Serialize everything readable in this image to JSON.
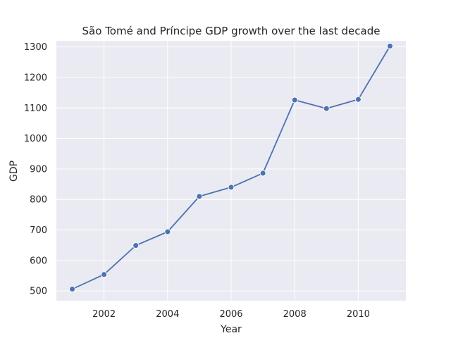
{
  "chart_data": {
    "type": "line",
    "title": "São Tomé and Príncipe GDP growth over the last decade",
    "xlabel": "Year",
    "ylabel": "GDP",
    "xlim": [
      2000.5,
      2011.5
    ],
    "ylim": [
      468,
      1320
    ],
    "xticks": [
      2002,
      2004,
      2006,
      2008,
      2010
    ],
    "yticks": [
      500,
      600,
      700,
      800,
      900,
      1000,
      1100,
      1200,
      1300
    ],
    "grid": true,
    "series": [
      {
        "x": [
          2001,
          2002,
          2003,
          2004,
          2005,
          2006,
          2007,
          2008,
          2009,
          2010,
          2011
        ],
        "y": [
          506,
          554,
          649,
          694,
          810,
          840,
          886,
          1126,
          1098,
          1128,
          1303
        ]
      }
    ],
    "colors": {
      "line": "#4c72b0",
      "background": "#eaeaf2",
      "grid": "#ffffff"
    }
  }
}
